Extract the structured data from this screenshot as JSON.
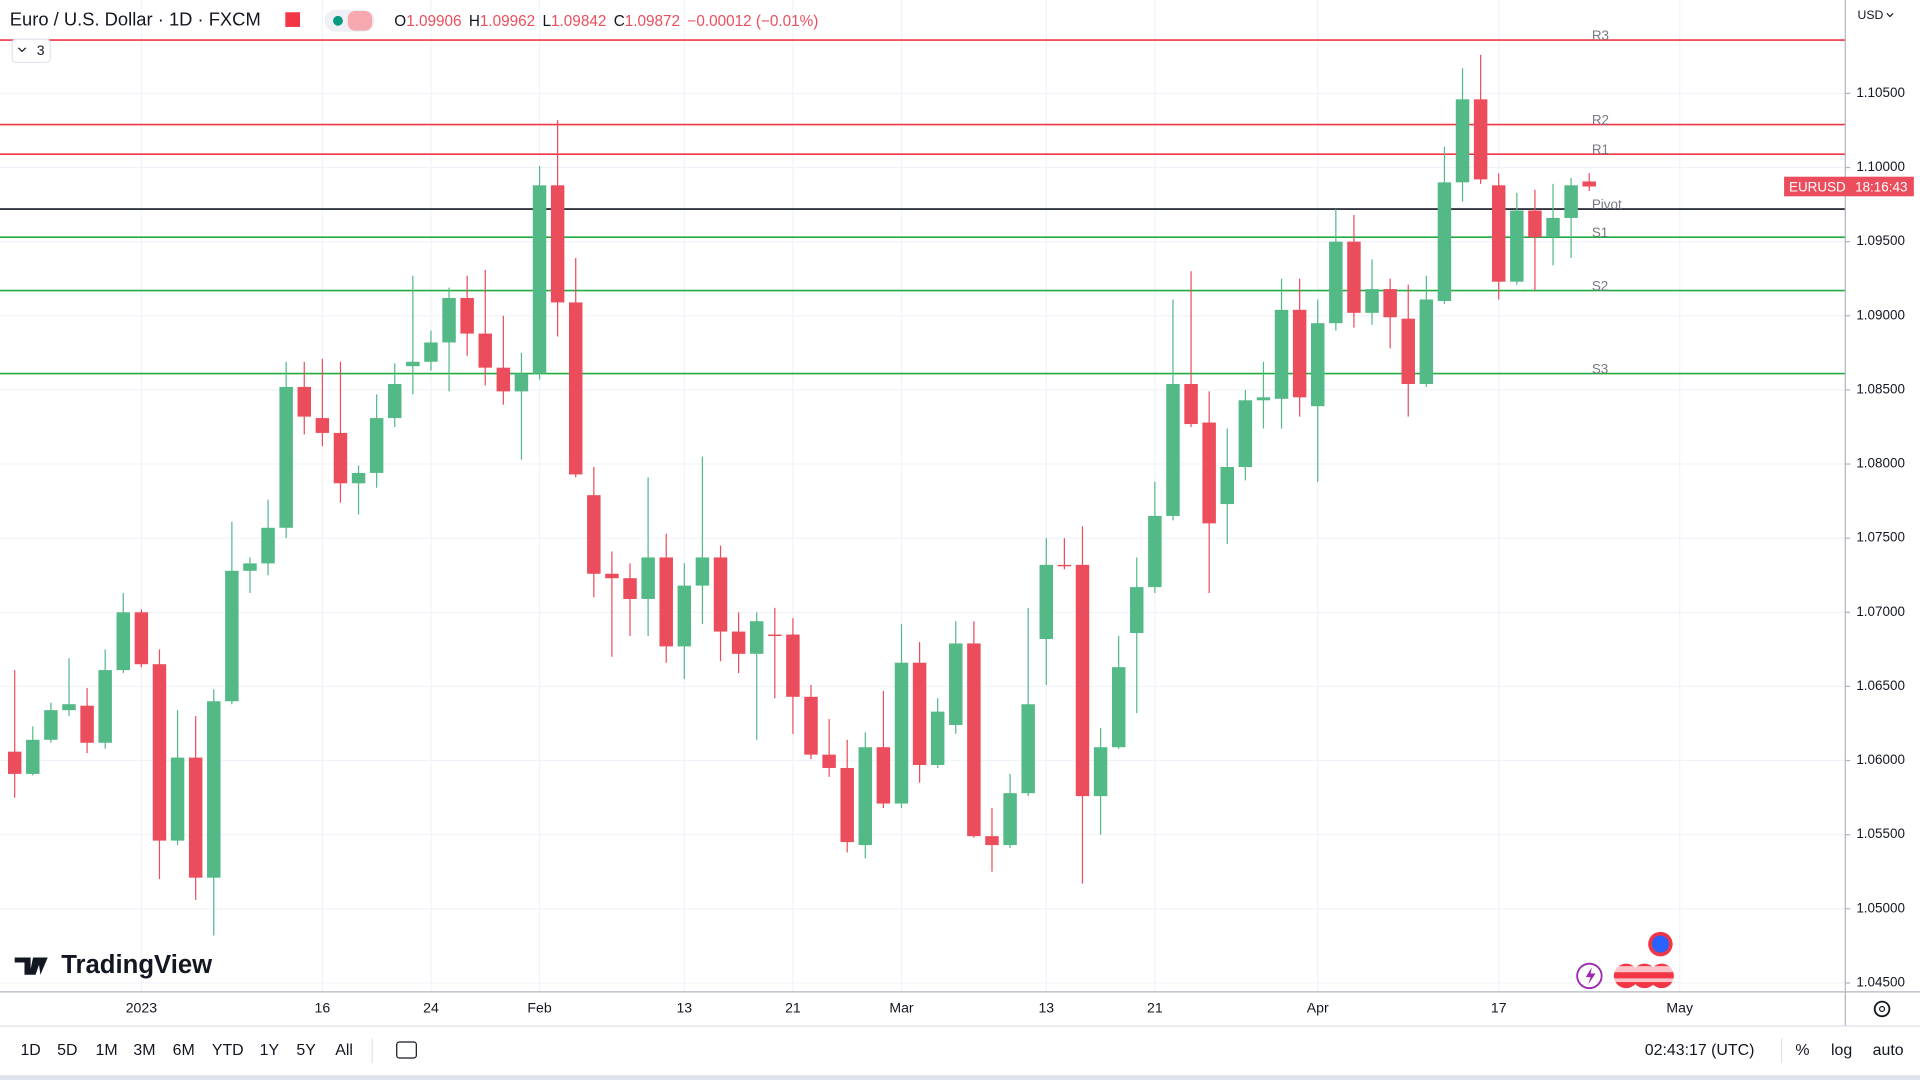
{
  "chart_data": {
    "type": "candlestick",
    "title": "Euro / U.S. Dollar · 1D · FXCM",
    "ohlc_labels": [
      "O",
      "H",
      "L",
      "C"
    ],
    "change": "−0.00012 (−0.01%)",
    "indicators_count": 3,
    "currency": "USD",
    "countdown": "18:16:43",
    "brand": "TradingView",
    "categories": [
      null,
      null,
      null,
      null,
      null,
      null,
      null,
      "2023",
      null,
      null,
      null,
      null,
      null,
      null,
      null,
      null,
      null,
      "16",
      null,
      null,
      null,
      null,
      null,
      "24",
      null,
      null,
      null,
      null,
      null,
      "Feb",
      null,
      null,
      null,
      null,
      null,
      null,
      null,
      "13",
      null,
      null,
      null,
      null,
      null,
      "21",
      null,
      null,
      null,
      null,
      null,
      "Mar",
      null,
      null,
      null,
      null,
      null,
      null,
      null,
      "13",
      null,
      null,
      null,
      null,
      null,
      "21",
      null,
      null,
      null,
      null,
      null,
      null,
      null,
      null,
      "Apr",
      null,
      null,
      null,
      null,
      null,
      null,
      null,
      null,
      null,
      "17",
      null,
      null,
      null,
      null,
      null,
      null,
      null,
      null,
      null,
      "May"
    ],
    "series": [
      {
        "name": "EURUSD",
        "up_color": "#53b987",
        "down_color": "#eb4d5c",
        "open": [
          1.0606,
          1.0591,
          1.0614,
          1.0634,
          1.0637,
          1.0612,
          1.0661,
          1.07,
          1.0665,
          1.0546,
          1.0602,
          1.0521,
          1.064,
          1.0728,
          1.0733,
          1.0757,
          1.0852,
          1.0831,
          1.0821,
          1.0787,
          1.0794,
          1.0831,
          1.0866,
          1.0869,
          1.0882,
          1.0912,
          1.0888,
          1.0865,
          1.0849,
          1.0861,
          1.0988,
          1.0909,
          1.0779,
          1.0726,
          1.0723,
          1.0709,
          1.0737,
          1.0677,
          1.0718,
          1.0737,
          1.0687,
          1.0672,
          1.0685,
          1.0685,
          1.0643,
          1.0604,
          1.0595,
          1.0543,
          1.0609,
          1.0571,
          1.0666,
          1.0597,
          1.0624,
          1.0679,
          1.0549,
          1.0543,
          1.0578,
          1.0682,
          1.0732,
          1.0732,
          1.0576,
          1.0609,
          1.0686,
          1.0717,
          1.0765,
          1.0854,
          1.0828,
          1.0773,
          1.0798,
          1.0843,
          1.0844,
          1.0904,
          1.0839,
          1.0895,
          1.095,
          1.0902,
          1.0918,
          1.0898,
          1.0854,
          1.091,
          1.099,
          1.1046,
          1.0988,
          1.0923,
          1.0971,
          1.0953,
          1.0966,
          1.09906,
          null,
          null,
          null,
          null,
          null
        ],
        "high": [
          1.0661,
          1.0623,
          1.0639,
          1.0669,
          1.0649,
          1.0675,
          1.0713,
          1.0702,
          1.0675,
          1.0634,
          1.063,
          1.0648,
          1.0761,
          1.0737,
          1.0776,
          1.0869,
          1.0869,
          1.0871,
          1.0869,
          1.0799,
          1.0847,
          1.0868,
          1.0927,
          1.089,
          1.0919,
          1.0927,
          1.0931,
          1.09,
          1.0875,
          1.1001,
          1.1032,
          1.0939,
          1.0798,
          1.0741,
          1.0733,
          1.0791,
          1.0753,
          1.0733,
          1.0805,
          1.0745,
          1.07,
          1.07,
          1.0703,
          1.0696,
          1.0651,
          1.0628,
          1.0614,
          1.0619,
          1.0647,
          1.0692,
          1.068,
          1.0642,
          1.0694,
          1.0694,
          1.0568,
          1.0591,
          1.0703,
          1.075,
          1.075,
          1.0758,
          1.0622,
          1.0684,
          1.0737,
          1.0788,
          1.0911,
          1.093,
          1.0849,
          1.0824,
          1.085,
          1.0869,
          1.0925,
          1.0925,
          1.0911,
          1.0972,
          1.0968,
          1.0938,
          1.0925,
          1.0921,
          1.0927,
          1.1014,
          1.1067,
          1.1076,
          1.0996,
          1.0983,
          1.0985,
          1.0989,
          1.0993,
          1.09962,
          null,
          null,
          null,
          null,
          null
        ],
        "low": [
          1.0575,
          1.059,
          1.0612,
          1.063,
          1.0605,
          1.0608,
          1.0659,
          1.0663,
          1.052,
          1.0543,
          1.0506,
          1.0482,
          1.0638,
          1.0713,
          1.0725,
          1.075,
          1.082,
          1.0812,
          1.0774,
          1.0766,
          1.0784,
          1.0825,
          1.0847,
          1.0863,
          1.0849,
          1.0873,
          1.0853,
          1.084,
          1.0803,
          1.0857,
          1.0886,
          1.0791,
          1.071,
          1.067,
          1.0684,
          1.0684,
          1.0666,
          1.0655,
          1.0692,
          1.0667,
          1.0659,
          1.0614,
          1.0642,
          1.0618,
          1.0601,
          1.0589,
          1.0538,
          1.0534,
          1.0568,
          1.0568,
          1.0585,
          1.0595,
          1.0618,
          1.0548,
          1.0525,
          1.0541,
          1.0576,
          1.0651,
          1.0729,
          1.0517,
          1.055,
          1.0608,
          1.0632,
          1.0713,
          1.0762,
          1.0825,
          1.0713,
          1.0746,
          1.0789,
          1.0824,
          1.0824,
          1.0832,
          1.0788,
          1.089,
          1.0892,
          1.0894,
          1.0878,
          1.0832,
          1.0852,
          1.0908,
          1.0977,
          1.0989,
          1.0911,
          1.0921,
          1.0917,
          1.0934,
          1.0939,
          1.09842,
          null,
          null,
          null,
          null,
          null
        ],
        "close": [
          1.0591,
          1.0614,
          1.0634,
          1.0638,
          1.0612,
          1.0661,
          1.07,
          1.0665,
          1.0546,
          1.0602,
          1.0521,
          1.064,
          1.0728,
          1.0733,
          1.0757,
          1.0852,
          1.0832,
          1.0821,
          1.0787,
          1.0794,
          1.0831,
          1.0854,
          1.0869,
          1.0882,
          1.0912,
          1.0888,
          1.0865,
          1.0849,
          1.0861,
          1.0988,
          1.0909,
          1.0793,
          1.0726,
          1.0723,
          1.0709,
          1.0737,
          1.0677,
          1.0718,
          1.0737,
          1.0687,
          1.0672,
          1.0694,
          1.0684,
          1.0643,
          1.0604,
          1.0595,
          1.0545,
          1.0609,
          1.0571,
          1.0666,
          1.0597,
          1.0633,
          1.0679,
          1.0549,
          1.0543,
          1.0578,
          1.0638,
          1.0732,
          1.0731,
          1.0576,
          1.0609,
          1.0663,
          1.0717,
          1.0765,
          1.0854,
          1.0827,
          1.076,
          1.0798,
          1.0843,
          1.0845,
          1.0904,
          1.0845,
          1.0895,
          1.095,
          1.0902,
          1.0918,
          1.0899,
          1.0854,
          1.0911,
          1.099,
          1.1046,
          1.0992,
          1.0923,
          1.0971,
          1.0953,
          1.0966,
          1.0988,
          1.09872,
          null,
          null,
          null,
          null,
          null
        ]
      }
    ],
    "pivots": [
      {
        "name": "R3",
        "value": 1.1086,
        "color": "#f23645"
      },
      {
        "name": "R2",
        "value": 1.1029,
        "color": "#f23645"
      },
      {
        "name": "R1",
        "value": 1.1009,
        "color": "#f23645"
      },
      {
        "name": "Pivot",
        "value": 1.0972,
        "color": "#131722"
      },
      {
        "name": "S1",
        "value": 1.0953,
        "color": "#22ab40"
      },
      {
        "name": "S2",
        "value": 1.0917,
        "color": "#22ab40"
      },
      {
        "name": "S3",
        "value": 1.0861,
        "color": "#22ab40"
      }
    ],
    "ylim": [
      1.0444,
      1.1113
    ],
    "yticks": [
      {
        "value": 1.045,
        "label": "1.04500"
      },
      {
        "value": 1.05,
        "label": "1.05000"
      },
      {
        "value": 1.055,
        "label": "1.05500"
      },
      {
        "value": 1.06,
        "label": "1.06000"
      },
      {
        "value": 1.065,
        "label": "1.06500"
      },
      {
        "value": 1.07,
        "label": "1.07000"
      },
      {
        "value": 1.075,
        "label": "1.07500"
      },
      {
        "value": 1.08,
        "label": "1.08000"
      },
      {
        "value": 1.085,
        "label": "1.08500"
      },
      {
        "value": 1.09,
        "label": "1.09000"
      },
      {
        "value": 1.095,
        "label": "1.09500"
      },
      {
        "value": 1.1,
        "label": "1.10000"
      },
      {
        "value": 1.105,
        "label": "1.10500"
      }
    ],
    "grid": true
  },
  "toolbar": {
    "ranges": [
      "1D",
      "5D",
      "1M",
      "3M",
      "6M",
      "YTD",
      "1Y",
      "5Y",
      "All"
    ],
    "clock": "02:43:17 (UTC)",
    "percent": "%",
    "log": "log",
    "auto": "auto"
  }
}
